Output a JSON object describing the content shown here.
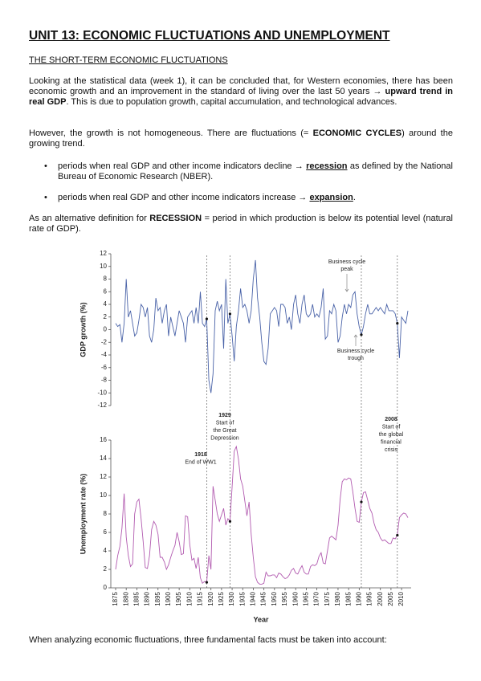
{
  "header": {
    "title": "UNIT 13: ECONOMIC FLUCTUATIONS AND UNEMPLOYMENT",
    "subtitle": "THE SHORT-TERM ECONOMIC FLUCTUATIONS"
  },
  "paragraphs": [
    [
      "Looking at the statistical data (week 1), it can be concluded that, for Western economies, there has been economic growth and an improvement in the standard of living over the last 50 years → ",
      {
        "b": "upward trend in real GDP"
      },
      ". This is due to population growth, capital accumulation, and technological advances."
    ],
    [
      "However, the growth is not homogeneous. There are fluctuations (= ",
      {
        "b": "ECONOMIC CYCLES"
      },
      ") around the growing trend."
    ]
  ],
  "bullets": [
    [
      "periods when real GDP and other income indicators decline → ",
      {
        "bu": "recession"
      },
      " as defined by the National Bureau of Economic Research (NBER)."
    ],
    [
      "periods when real GDP and other income indicators increase → ",
      {
        "bu": "expansion"
      },
      "."
    ]
  ],
  "after": [
    "As an alternative definition for ",
    {
      "b": "RECESSION"
    },
    " = period in which production is below its potential level (natural rate of GDP)."
  ],
  "footer": "When analyzing economic fluctuations, three fundamental facts must be taken into account:",
  "chart_data": [
    {
      "type": "line",
      "ylabel": "GDP growth (%)",
      "ylim": [
        -12,
        12
      ],
      "yticks": [
        -12,
        -10,
        -8,
        -6,
        -4,
        -2,
        0,
        2,
        4,
        6,
        8,
        10,
        12
      ],
      "xlim": [
        1875,
        2013
      ],
      "highlight_years": [
        1918,
        1929,
        1991,
        2008
      ],
      "annotations": [
        {
          "year": 1989,
          "lines": [
            "Business cycle",
            "peak"
          ]
        },
        {
          "year": 1991,
          "lines": [
            "Business cycle",
            "trough"
          ]
        }
      ],
      "x": [
        1875,
        1876,
        1877,
        1878,
        1879,
        1880,
        1881,
        1882,
        1883,
        1884,
        1885,
        1886,
        1887,
        1888,
        1889,
        1890,
        1891,
        1892,
        1893,
        1894,
        1895,
        1896,
        1897,
        1898,
        1899,
        1900,
        1901,
        1902,
        1903,
        1904,
        1905,
        1906,
        1907,
        1908,
        1909,
        1910,
        1911,
        1912,
        1913,
        1914,
        1915,
        1916,
        1917,
        1918,
        1919,
        1920,
        1921,
        1922,
        1923,
        1924,
        1925,
        1926,
        1927,
        1928,
        1929,
        1930,
        1931,
        1932,
        1933,
        1934,
        1935,
        1936,
        1937,
        1938,
        1939,
        1940,
        1941,
        1942,
        1943,
        1944,
        1945,
        1946,
        1947,
        1948,
        1949,
        1950,
        1951,
        1952,
        1953,
        1954,
        1955,
        1956,
        1957,
        1958,
        1959,
        1960,
        1961,
        1962,
        1963,
        1964,
        1965,
        1966,
        1967,
        1968,
        1969,
        1970,
        1971,
        1972,
        1973,
        1974,
        1975,
        1976,
        1977,
        1978,
        1979,
        1980,
        1981,
        1982,
        1983,
        1984,
        1985,
        1986,
        1987,
        1988,
        1989,
        1990,
        1991,
        1992,
        1993,
        1994,
        1995,
        1996,
        1997,
        1998,
        1999,
        2000,
        2001,
        2002,
        2003,
        2004,
        2005,
        2006,
        2007,
        2008,
        2009,
        2010,
        2011,
        2012,
        2013
      ],
      "series": [
        {
          "color": "#4a63a8",
          "values": [
            1,
            0.5,
            0.8,
            -2,
            1,
            8,
            2,
            3,
            1,
            -1,
            -0.5,
            1.5,
            4,
            3.5,
            2,
            3.5,
            -1,
            -2,
            0,
            5,
            3,
            3.5,
            1,
            3,
            4,
            -1,
            2,
            0.5,
            -1,
            1,
            3,
            2,
            1,
            -2,
            2,
            2.5,
            3,
            1,
            3.5,
            1,
            6,
            1,
            0.5,
            1.7,
            -8,
            -10,
            -7,
            3,
            4.5,
            3,
            4,
            -3,
            8,
            1,
            2.5,
            -1,
            -5,
            0.5,
            3,
            6.5,
            3.5,
            4,
            3,
            1,
            3,
            8,
            11,
            5,
            2,
            -2,
            -5,
            -5.5,
            -3,
            2.5,
            3,
            3.5,
            3,
            0.5,
            4,
            4,
            3.5,
            1,
            2,
            0,
            4,
            5.5,
            2.5,
            1,
            4,
            5.5,
            2.5,
            2,
            2.5,
            4,
            2,
            2.5,
            2,
            3.5,
            6.5,
            -1.5,
            -1,
            3,
            2.5,
            4,
            3,
            -2,
            -1,
            2,
            4,
            2.5,
            4,
            3.5,
            5.5,
            6,
            2.5,
            0.5,
            -0.8,
            0.5,
            2.5,
            4,
            2.5,
            2.5,
            3,
            3.5,
            3,
            3.5,
            3,
            2.5,
            4,
            3,
            3,
            3,
            2.5,
            1,
            -4.5,
            2,
            1.5,
            1,
            3
          ]
        }
      ]
    },
    {
      "type": "line",
      "ylabel": "Unemployment rate (%)",
      "xlabel": "Year",
      "ylim": [
        0,
        16
      ],
      "yticks": [
        0,
        2,
        4,
        6,
        8,
        10,
        12,
        14,
        16
      ],
      "xlim": [
        1875,
        2013
      ],
      "xticks": [
        1875,
        1880,
        1885,
        1890,
        1895,
        1900,
        1905,
        1910,
        1915,
        1920,
        1925,
        1930,
        1935,
        1940,
        1945,
        1950,
        1955,
        1960,
        1965,
        1970,
        1975,
        1980,
        1985,
        1990,
        1995,
        2000,
        2005,
        2010
      ],
      "highlight_years": [
        1918,
        1929,
        1991,
        2008
      ],
      "annotations": [
        {
          "year": 1918,
          "lines": [
            "End of WW1"
          ]
        },
        {
          "year": 1929,
          "lines": [
            "Start of",
            "the Great",
            "Depression"
          ]
        },
        {
          "year": 2008,
          "lines": [
            "Start of",
            "the global",
            "financial",
            "crisis"
          ]
        }
      ],
      "series": [
        {
          "color": "#b25bb0",
          "values": [
            2,
            3.5,
            4.5,
            6.5,
            10.2,
            5.5,
            3.5,
            2.3,
            2.6,
            8,
            9.3,
            9.6,
            7.5,
            5,
            2.2,
            2.1,
            3.5,
            6.3,
            7.2,
            6.8,
            5.8,
            3.3,
            3.3,
            2.8,
            2,
            2.5,
            3.3,
            4,
            4.6,
            6,
            5,
            3.6,
            3.7,
            7.8,
            7.7,
            4.7,
            3,
            3.2,
            2.1,
            3.3,
            1.1,
            0.5,
            0.7,
            0.6,
            3.5,
            2,
            11,
            9.5,
            8,
            7.2,
            7.9,
            8.6,
            6.8,
            7.5,
            7.2,
            11,
            14.8,
            15.3,
            13.9,
            11.8,
            11,
            9.4,
            7.8,
            9.3,
            5.8,
            3.3,
            1.2,
            0.6,
            0.4,
            0.4,
            0.5,
            1.7,
            1.3,
            1.3,
            1.4,
            1.4,
            1.1,
            1.6,
            1.5,
            1.2,
            1,
            1.1,
            1.4,
            1.9,
            2.1,
            1.6,
            1.5,
            2,
            2.4,
            1.7,
            1.5,
            1.5,
            2.3,
            2.5,
            2.4,
            2.6,
            3.4,
            3.8,
            2.7,
            2.6,
            4,
            5.4,
            5.6,
            5.4,
            5.2,
            6.8,
            9.6,
            11.5,
            11.8,
            11.7,
            11.9,
            11.8,
            10.4,
            8.6,
            7.2,
            7.1,
            9.3,
            10.3,
            10.4,
            9.5,
            8.6,
            8.1,
            7,
            6.3,
            6,
            5.4,
            5.1,
            5.2,
            5,
            4.8,
            4.8,
            5.4,
            5.3,
            5.7,
            7.6,
            7.9,
            8.1,
            8,
            7.6
          ]
        }
      ]
    }
  ]
}
